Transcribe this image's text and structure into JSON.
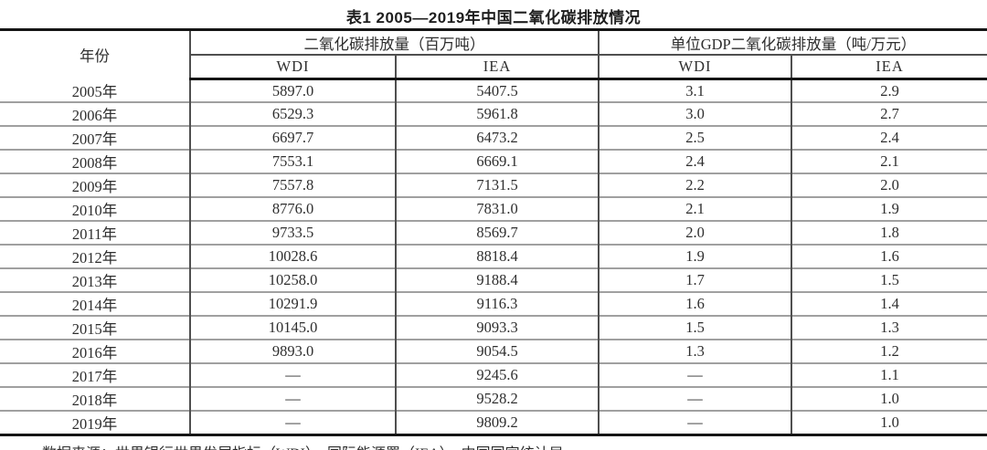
{
  "title": "表1 2005—2019年中国二氧化碳排放情况",
  "table": {
    "header": {
      "year": "年份",
      "group1": "二氧化碳排放量（百万吨）",
      "group2": "单位GDP二氧化碳排放量（吨/万元）",
      "sub": [
        "WDI",
        "IEA",
        "WDI",
        "IEA"
      ]
    },
    "rows": [
      [
        "2005年",
        "5897.0",
        "5407.5",
        "3.1",
        "2.9"
      ],
      [
        "2006年",
        "6529.3",
        "5961.8",
        "3.0",
        "2.7"
      ],
      [
        "2007年",
        "6697.7",
        "6473.2",
        "2.5",
        "2.4"
      ],
      [
        "2008年",
        "7553.1",
        "6669.1",
        "2.4",
        "2.1"
      ],
      [
        "2009年",
        "7557.8",
        "7131.5",
        "2.2",
        "2.0"
      ],
      [
        "2010年",
        "8776.0",
        "7831.0",
        "2.1",
        "1.9"
      ],
      [
        "2011年",
        "9733.5",
        "8569.7",
        "2.0",
        "1.8"
      ],
      [
        "2012年",
        "10028.6",
        "8818.4",
        "1.9",
        "1.6"
      ],
      [
        "2013年",
        "10258.0",
        "9188.4",
        "1.7",
        "1.5"
      ],
      [
        "2014年",
        "10291.9",
        "9116.3",
        "1.6",
        "1.4"
      ],
      [
        "2015年",
        "10145.0",
        "9093.3",
        "1.5",
        "1.3"
      ],
      [
        "2016年",
        "9893.0",
        "9054.5",
        "1.3",
        "1.2"
      ],
      [
        "2017年",
        "—",
        "9245.6",
        "—",
        "1.1"
      ],
      [
        "2018年",
        "—",
        "9528.2",
        "—",
        "1.0"
      ],
      [
        "2019年",
        "—",
        "9809.2",
        "—",
        "1.0"
      ]
    ]
  },
  "footer": "数据来源：世界银行世界发展指标（WDI）、国际能源署（IEA）、中国国家统计局。"
}
